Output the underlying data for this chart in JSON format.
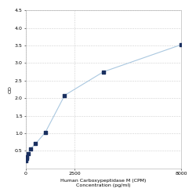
{
  "x_values": [
    0,
    31.25,
    62.5,
    125,
    250,
    500,
    1000,
    2000,
    4000,
    8000
  ],
  "y_values": [
    0.22,
    0.28,
    0.34,
    0.42,
    0.56,
    0.7,
    1.02,
    2.08,
    2.75,
    3.52
  ],
  "line_color": "#aac8e0",
  "marker_color": "#1a3060",
  "marker_style": "s",
  "marker_size": 2.5,
  "line_width": 0.8,
  "xlabel_line1": "Human Carboxypeptidase M (CPM)",
  "xlabel_line2": "Concentration (pg/ml)",
  "ylabel": "OD",
  "xlim": [
    0,
    8000
  ],
  "ylim": [
    0,
    4.5
  ],
  "yticks": [
    0.5,
    1.0,
    1.5,
    2.0,
    2.5,
    3.0,
    3.5,
    4.0,
    4.5
  ],
  "xticks": [
    0,
    2500,
    8000
  ],
  "xticklabels": [
    "0",
    "2500",
    "8000"
  ],
  "grid_color": "#d0d0d0",
  "bg_color": "#ffffff",
  "font_size_axis_label": 4.5,
  "font_size_tick": 4.5
}
